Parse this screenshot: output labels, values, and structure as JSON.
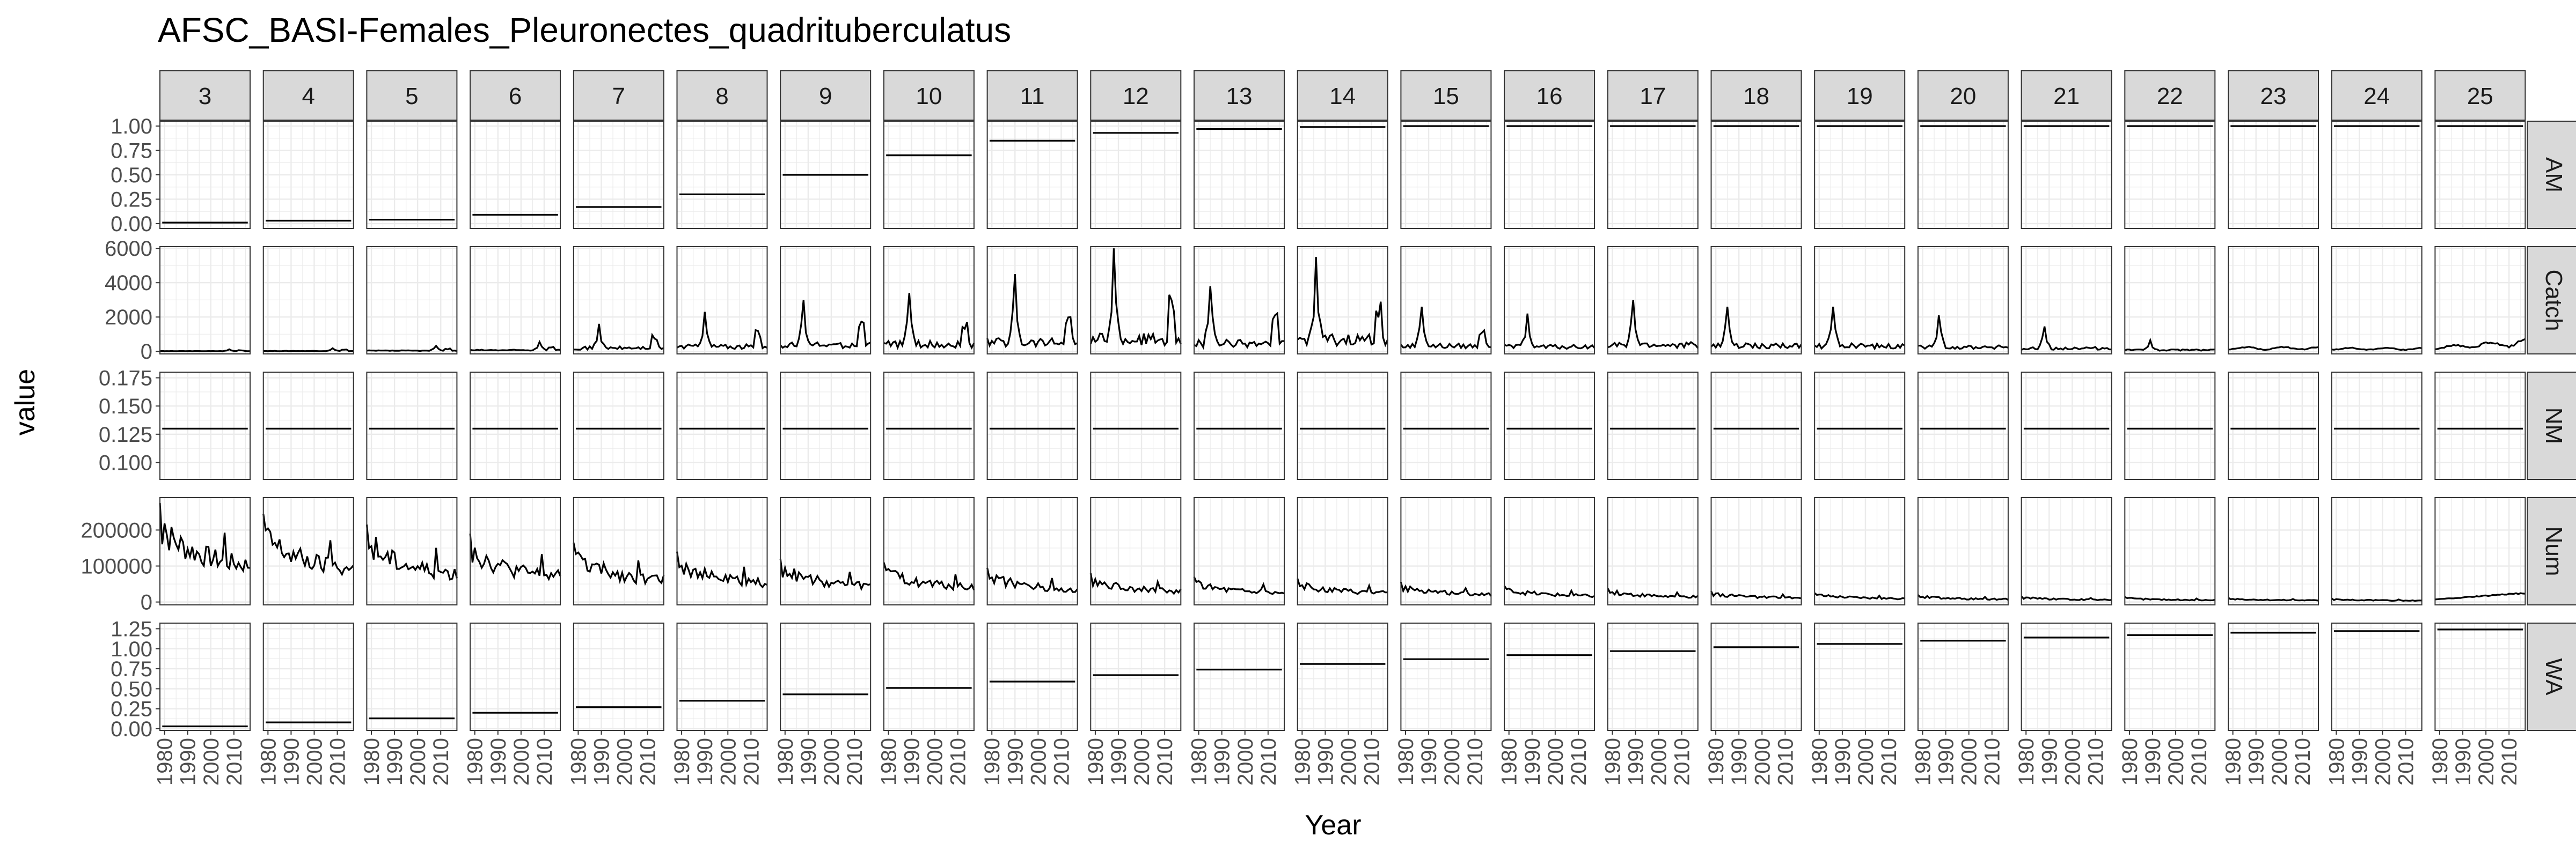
{
  "chart_data": {
    "type": "line",
    "title": "AFSC_BASI-Females_Pleuronectes_quadrituberculatus",
    "xlabel": "Year",
    "ylabel": "value",
    "xlim": [
      1978,
      2017
    ],
    "x_ticks": [
      1980,
      1990,
      2000,
      2010
    ],
    "x_tick_labels": [
      "1980",
      "1990",
      "2000",
      "2010"
    ],
    "grid": true,
    "legend": "none",
    "columns": [
      "3",
      "4",
      "5",
      "6",
      "7",
      "8",
      "9",
      "10",
      "11",
      "12",
      "13",
      "14",
      "15",
      "16",
      "17",
      "18",
      "19",
      "20",
      "21",
      "22",
      "23",
      "24",
      "25"
    ],
    "rows": [
      {
        "name": "AM",
        "ylim": [
          -0.05,
          1.05
        ],
        "ticks": [
          0,
          0.25,
          0.5,
          0.75,
          1
        ],
        "tick_labels": [
          "0.00",
          "0.25",
          "0.50",
          "0.75",
          "1.00"
        ],
        "constant_values": [
          0.01,
          0.03,
          0.04,
          0.09,
          0.17,
          0.3,
          0.5,
          0.7,
          0.85,
          0.93,
          0.97,
          0.99,
          1.0,
          1.0,
          1.0,
          1.0,
          1.0,
          1.0,
          1.0,
          1.0,
          1.0,
          1.0,
          1.0
        ]
      },
      {
        "name": "Catch",
        "ylim": [
          -150,
          6100
        ],
        "ticks": [
          0,
          2000,
          4000,
          6000
        ],
        "tick_labels": [
          "0",
          "2000",
          "4000",
          "6000"
        ],
        "peaks": [
          120,
          180,
          320,
          550,
          1600,
          2300,
          3000,
          3400,
          4500,
          6000,
          3800,
          5500,
          2600,
          2200,
          3000,
          2600,
          2600,
          2100,
          1450,
          650,
          550,
          450,
          1500
        ]
      },
      {
        "name": "NM",
        "ylim": [
          0.085,
          0.18
        ],
        "ticks": [
          0.1,
          0.125,
          0.15,
          0.175
        ],
        "tick_labels": [
          "0.100",
          "0.125",
          "0.150",
          "0.175"
        ],
        "constant": 0.13
      },
      {
        "name": "Num",
        "ylim": [
          -8000,
          290000
        ],
        "ticks": [
          0,
          100000,
          200000
        ],
        "tick_labels": [
          "0",
          "100000",
          "200000"
        ],
        "peaks": [
          275000,
          245000,
          215000,
          190000,
          165000,
          140000,
          120000,
          110000,
          95000,
          80000,
          70000,
          65000,
          55000,
          45000,
          38000,
          30000,
          25000,
          20000,
          16000,
          14000,
          12000,
          10000,
          25000
        ]
      },
      {
        "name": "WA",
        "ylim": [
          -0.02,
          1.32
        ],
        "ticks": [
          0,
          0.25,
          0.5,
          0.75,
          1,
          1.25
        ],
        "tick_labels": [
          "0.00",
          "0.25",
          "0.50",
          "0.75",
          "1.00",
          "1.25"
        ],
        "constant_values": [
          0.03,
          0.08,
          0.13,
          0.2,
          0.27,
          0.35,
          0.43,
          0.51,
          0.59,
          0.67,
          0.74,
          0.81,
          0.87,
          0.92,
          0.97,
          1.02,
          1.06,
          1.1,
          1.14,
          1.17,
          1.2,
          1.22,
          1.24
        ]
      }
    ]
  }
}
